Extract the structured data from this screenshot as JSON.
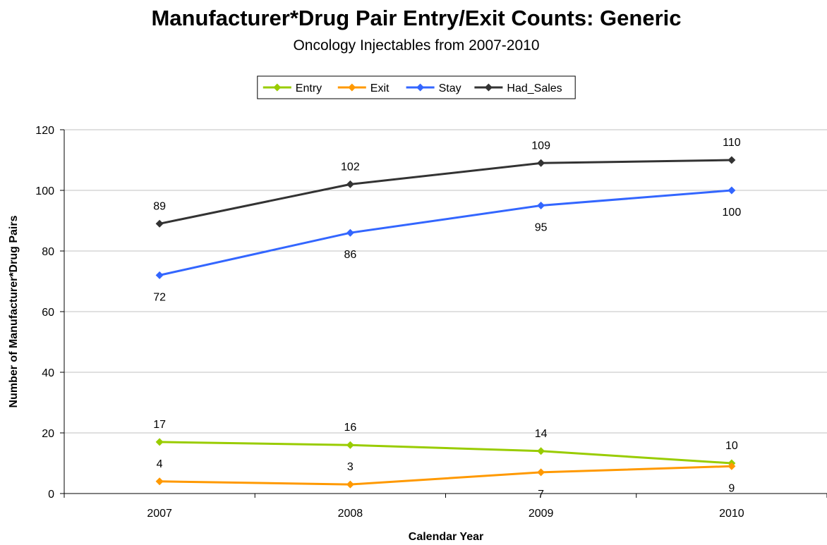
{
  "chart_data": {
    "type": "line",
    "title": "Manufacturer*Drug Pair Entry/Exit Counts: Generic",
    "subtitle": "Oncology Injectables from 2007-2010",
    "xlabel": "Calendar Year",
    "ylabel": "Number of Manufacturer*Drug Pairs",
    "categories": [
      "2007",
      "2008",
      "2009",
      "2010"
    ],
    "ylim": [
      0,
      120
    ],
    "yticks": [
      0,
      20,
      40,
      60,
      80,
      100,
      120
    ],
    "grid": true,
    "legend_position": "top-center",
    "series": [
      {
        "name": "Entry",
        "values": [
          17,
          16,
          14,
          10
        ],
        "color": "#99cc00",
        "label_position": "above"
      },
      {
        "name": "Exit",
        "values": [
          4,
          3,
          7,
          9
        ],
        "color": "#ff9900",
        "label_position": "above-above-below-below"
      },
      {
        "name": "Stay",
        "values": [
          72,
          86,
          95,
          100
        ],
        "color": "#3366ff",
        "label_position": "below"
      },
      {
        "name": "Had_Sales",
        "values": [
          89,
          102,
          109,
          110
        ],
        "color": "#333333",
        "label_position": "above"
      }
    ]
  }
}
